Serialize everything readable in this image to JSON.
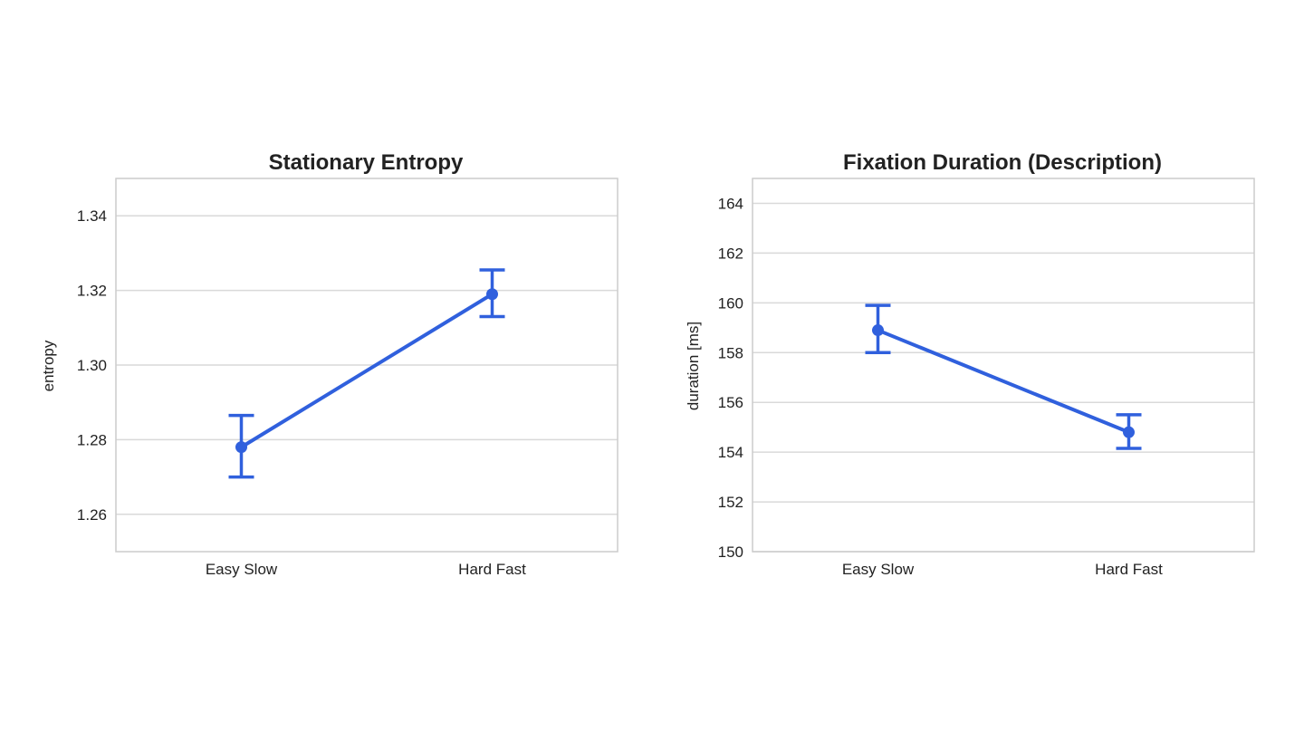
{
  "colors": {
    "series": "#3060dd",
    "grid": "#d9d9d9",
    "frame": "#cccccc",
    "text": "#222222"
  },
  "chart_data": [
    {
      "type": "line",
      "title": "Stationary Entropy",
      "xlabel": "",
      "ylabel": "entropy",
      "categories": [
        "Easy Slow",
        "Hard Fast"
      ],
      "series": [
        {
          "values": [
            1.278,
            1.319
          ],
          "ci_low": [
            1.27,
            1.313
          ],
          "ci_high": [
            1.2865,
            1.3255
          ]
        }
      ],
      "ylim": [
        1.25,
        1.35
      ],
      "yticks": [
        1.26,
        1.28,
        1.3,
        1.32,
        1.34
      ],
      "ytick_labels": [
        "1.26",
        "1.28",
        "1.30",
        "1.32",
        "1.34"
      ],
      "grid": true,
      "legend": "none"
    },
    {
      "type": "line",
      "title": "Fixation Duration (Description)",
      "xlabel": "",
      "ylabel": "duration [ms]",
      "categories": [
        "Easy Slow",
        "Hard Fast"
      ],
      "series": [
        {
          "values": [
            158.9,
            154.8
          ],
          "ci_low": [
            158.0,
            154.15
          ],
          "ci_high": [
            159.9,
            155.5
          ]
        }
      ],
      "ylim": [
        150,
        165
      ],
      "yticks": [
        150,
        152,
        154,
        156,
        158,
        160,
        162,
        164
      ],
      "ytick_labels": [
        "150",
        "152",
        "154",
        "156",
        "158",
        "160",
        "162",
        "164"
      ],
      "grid": true,
      "legend": "none"
    }
  ]
}
